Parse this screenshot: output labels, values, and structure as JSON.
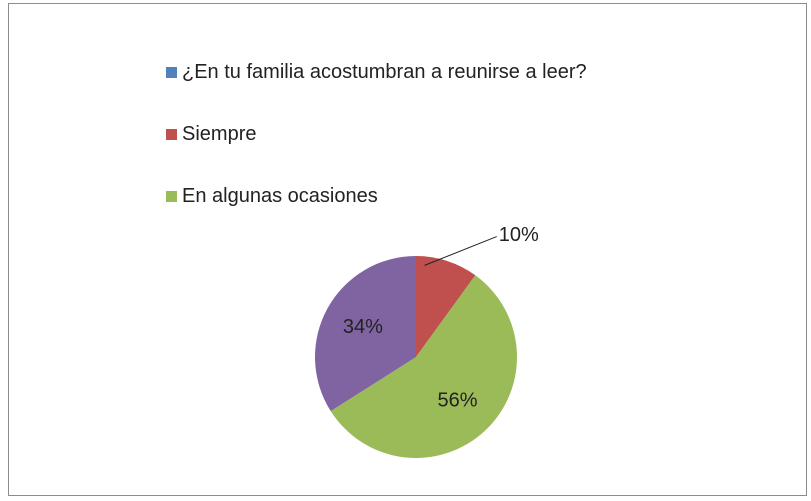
{
  "chart_data": {
    "type": "pie",
    "categories": [
      "¿En tu familia acostumbran a reunirse a leer?",
      "Siempre",
      "En algunas ocasiones",
      null
    ],
    "values": [
      null,
      10,
      56,
      34
    ],
    "value_labels": [
      null,
      "10%",
      "56%",
      "34%"
    ],
    "colors": [
      "#4f81bd",
      "#c0504d",
      "#9bbb59",
      "#8064a2"
    ]
  }
}
